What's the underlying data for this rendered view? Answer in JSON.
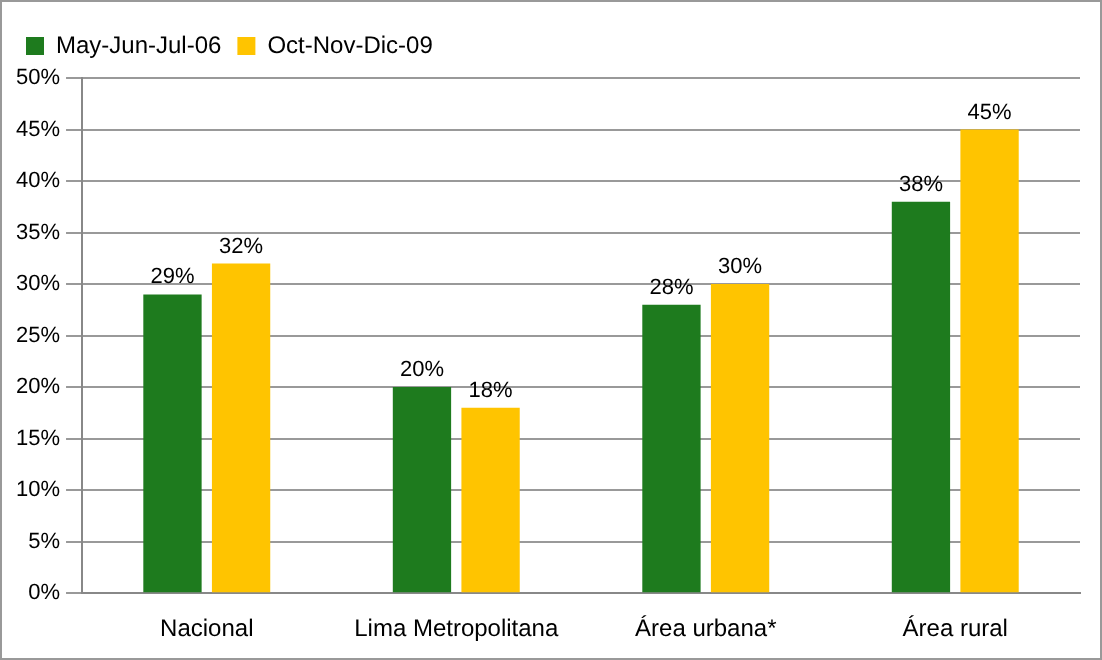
{
  "chart_data": {
    "type": "bar",
    "categories": [
      "Nacional",
      "Lima Metropolitana",
      "Área urbana*",
      "Área rural"
    ],
    "series": [
      {
        "name": "May-Jun-Jul-06",
        "color": "#1e7b1e",
        "values": [
          29,
          20,
          28,
          38
        ],
        "value_labels": [
          "29%",
          "20%",
          "28%",
          "38%"
        ]
      },
      {
        "name": "Oct-Nov-Dic-09",
        "color": "#ffc400",
        "values": [
          32,
          18,
          30,
          45
        ],
        "value_labels": [
          "32%",
          "18%",
          "30%",
          "45%"
        ]
      }
    ],
    "ylim": [
      0,
      50
    ],
    "yticks": [
      {
        "value": 0,
        "label": "0%"
      },
      {
        "value": 5,
        "label": "5%"
      },
      {
        "value": 10,
        "label": "10%"
      },
      {
        "value": 15,
        "label": "15%"
      },
      {
        "value": 20,
        "label": "20%"
      },
      {
        "value": 25,
        "label": "25%"
      },
      {
        "value": 30,
        "label": "30%"
      },
      {
        "value": 35,
        "label": "35%"
      },
      {
        "value": 40,
        "label": "40%"
      },
      {
        "value": 45,
        "label": "45%"
      },
      {
        "value": 50,
        "label": "50%"
      }
    ],
    "grid": "y",
    "legend": "top left"
  }
}
